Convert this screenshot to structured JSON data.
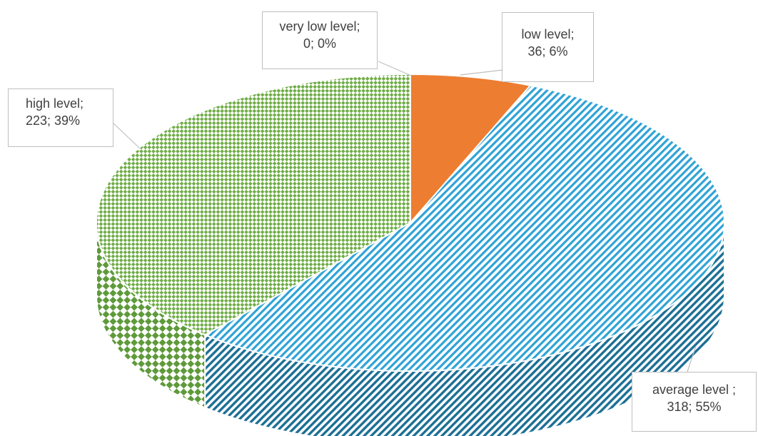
{
  "chart_data": {
    "type": "pie",
    "variant": "3d",
    "legend": "none",
    "slices": [
      {
        "label": "very low level",
        "value": 0,
        "percent": "0%",
        "label_line1": "very low level;",
        "label_line2": "0; 0%",
        "color": "#4472C4",
        "pattern": "solid"
      },
      {
        "label": "low level",
        "value": 36,
        "percent": "6%",
        "label_line1": "low level;",
        "label_line2": "36; 6%",
        "color": "#ED7D31",
        "pattern": "solid"
      },
      {
        "label": "average level",
        "value": 318,
        "percent": "55%",
        "label_line1": "average level ;",
        "label_line2": "318; 55%",
        "color": "#2FA3D6",
        "pattern": "diagonal-stripes"
      },
      {
        "label": "high level",
        "value": 223,
        "percent": "39%",
        "label_line1": "high level;",
        "label_line2": "223; 39%",
        "color": "#70AD47",
        "pattern": "checker"
      }
    ]
  }
}
